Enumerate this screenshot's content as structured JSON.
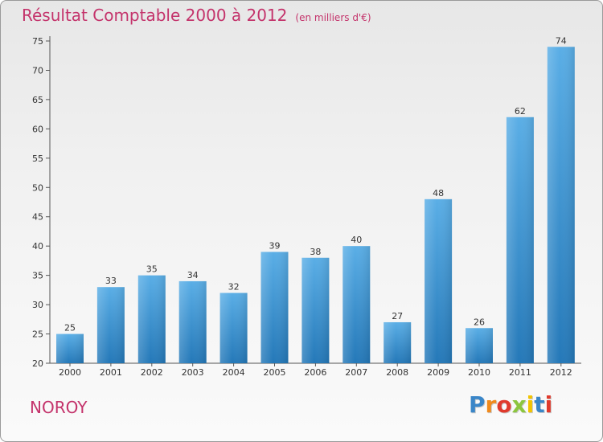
{
  "chart_data": {
    "type": "bar",
    "title": "Résultat Comptable 2000 à 2012",
    "subtitle": "(en milliers d'€)",
    "categories": [
      "2000",
      "2001",
      "2002",
      "2003",
      "2004",
      "2005",
      "2006",
      "2007",
      "2008",
      "2009",
      "2010",
      "2011",
      "2012"
    ],
    "values": [
      25,
      33,
      35,
      34,
      32,
      39,
      38,
      40,
      27,
      48,
      26,
      62,
      74
    ],
    "xlabel": "",
    "ylabel": "",
    "ylim": [
      20,
      75
    ],
    "yticks": [
      20,
      25,
      30,
      35,
      40,
      45,
      50,
      55,
      60,
      65,
      70,
      75
    ],
    "grid": false,
    "bar_color_top": "#5aaee6",
    "bar_color_bottom": "#2478b8"
  },
  "commune": "NOROY",
  "logo": {
    "letters": [
      "P",
      "r",
      "o",
      "x",
      "i",
      "t",
      "i"
    ],
    "colors": [
      "#3a86c8",
      "#f08a1c",
      "#e03a2c",
      "#8cc63f",
      "#f2c400",
      "#3a86c8",
      "#e03a2c"
    ]
  }
}
